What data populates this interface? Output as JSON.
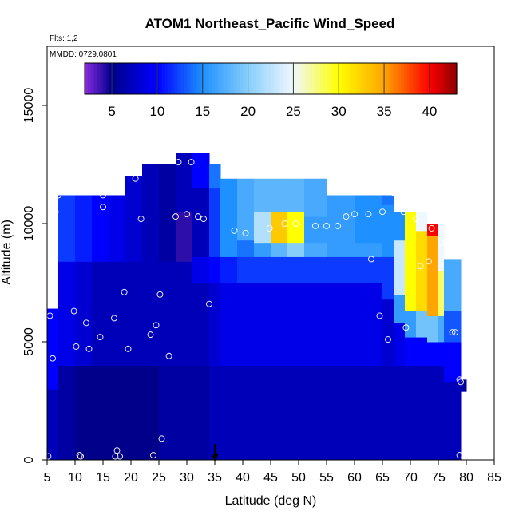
{
  "chart_data": {
    "type": "heatmap",
    "title": "ATOM1 Northeast_Pacific Wind_Speed",
    "subtitle_flights": "Flts: 1,2",
    "subtitle_dates": "MMDD: 0729,0801",
    "xlabel": "Latitude (deg N)",
    "ylabel": "Altitude (m)",
    "xlim": [
      5,
      85
    ],
    "ylim": [
      0,
      17500
    ],
    "x_ticks": [
      5,
      10,
      15,
      20,
      25,
      30,
      35,
      40,
      45,
      50,
      55,
      60,
      65,
      70,
      75,
      80,
      85
    ],
    "y_ticks": [
      0,
      5000,
      10000,
      15000
    ],
    "colorbar": {
      "min": 2,
      "max": 43,
      "ticks": [
        5,
        10,
        15,
        20,
        25,
        30,
        35,
        40
      ],
      "colors": [
        "#8a2be2",
        "#00008b",
        "#0000ff",
        "#1e90ff",
        "#87cefa",
        "#f0f8ff",
        "#ffff00",
        "#ffa500",
        "#ff0000",
        "#8b0000"
      ],
      "color_stops": [
        2,
        5,
        10,
        15,
        20,
        25,
        30,
        35,
        40,
        43
      ]
    },
    "columns": [
      {
        "x0": 5,
        "x1": 7,
        "layers": [
          [
            0,
            3000,
            7
          ],
          [
            3000,
            6400,
            10
          ]
        ]
      },
      {
        "x0": 7,
        "x1": 10,
        "layers": [
          [
            0,
            4000,
            6
          ],
          [
            4000,
            8400,
            9
          ],
          [
            8400,
            11200,
            12
          ]
        ]
      },
      {
        "x0": 10,
        "x1": 13,
        "layers": [
          [
            0,
            4000,
            5
          ],
          [
            4000,
            8400,
            8
          ],
          [
            8400,
            11200,
            11
          ]
        ]
      },
      {
        "x0": 13,
        "x1": 16,
        "layers": [
          [
            0,
            4000,
            5
          ],
          [
            4000,
            8400,
            7
          ],
          [
            8400,
            11200,
            10
          ]
        ]
      },
      {
        "x0": 16,
        "x1": 19,
        "layers": [
          [
            0,
            4000,
            5
          ],
          [
            4000,
            8400,
            7
          ],
          [
            8400,
            11200,
            9
          ]
        ]
      },
      {
        "x0": 19,
        "x1": 22,
        "layers": [
          [
            0,
            4000,
            5
          ],
          [
            4000,
            8400,
            7
          ],
          [
            8400,
            12000,
            8
          ]
        ]
      },
      {
        "x0": 22,
        "x1": 25,
        "layers": [
          [
            0,
            4000,
            5
          ],
          [
            4000,
            8400,
            7
          ],
          [
            8400,
            12500,
            7
          ]
        ]
      },
      {
        "x0": 25,
        "x1": 28,
        "layers": [
          [
            0,
            4000,
            6
          ],
          [
            4000,
            8400,
            7
          ],
          [
            8400,
            12500,
            6
          ]
        ]
      },
      {
        "x0": 28,
        "x1": 31,
        "layers": [
          [
            0,
            4000,
            6
          ],
          [
            4000,
            8400,
            7
          ],
          [
            8400,
            10500,
            4
          ],
          [
            10500,
            13000,
            7
          ]
        ]
      },
      {
        "x0": 31,
        "x1": 34,
        "layers": [
          [
            0,
            4000,
            6
          ],
          [
            4000,
            7500,
            7
          ],
          [
            7500,
            8600,
            9
          ],
          [
            8600,
            11500,
            7
          ],
          [
            11500,
            13000,
            10
          ]
        ]
      },
      {
        "x0": 34,
        "x1": 36,
        "layers": [
          [
            0,
            4000,
            7
          ],
          [
            4000,
            7500,
            8
          ],
          [
            7500,
            8600,
            10
          ],
          [
            8600,
            11500,
            12
          ],
          [
            11500,
            12500,
            14
          ]
        ]
      },
      {
        "x0": 36,
        "x1": 39,
        "layers": [
          [
            0,
            4000,
            7
          ],
          [
            4000,
            7500,
            9
          ],
          [
            7500,
            8600,
            11
          ],
          [
            8600,
            11900,
            15
          ]
        ]
      },
      {
        "x0": 39,
        "x1": 42,
        "layers": [
          [
            0,
            4000,
            7
          ],
          [
            4000,
            7500,
            9
          ],
          [
            7500,
            8600,
            12
          ],
          [
            8600,
            9300,
            14
          ],
          [
            9300,
            11900,
            17
          ]
        ]
      },
      {
        "x0": 42,
        "x1": 45,
        "layers": [
          [
            0,
            4000,
            7
          ],
          [
            4000,
            7500,
            9
          ],
          [
            7500,
            8600,
            12
          ],
          [
            8600,
            9200,
            16
          ],
          [
            9200,
            10500,
            22
          ],
          [
            10500,
            11900,
            18
          ]
        ]
      },
      {
        "x0": 45,
        "x1": 48,
        "layers": [
          [
            0,
            4000,
            7
          ],
          [
            4000,
            7500,
            9
          ],
          [
            7500,
            8600,
            12
          ],
          [
            8600,
            9200,
            18
          ],
          [
            9200,
            10500,
            33
          ],
          [
            10500,
            11900,
            18
          ]
        ]
      },
      {
        "x0": 48,
        "x1": 51,
        "layers": [
          [
            0,
            4000,
            7
          ],
          [
            4000,
            7500,
            9
          ],
          [
            7500,
            8600,
            12
          ],
          [
            8600,
            9200,
            20
          ],
          [
            9200,
            10500,
            30
          ],
          [
            10500,
            11900,
            18
          ]
        ]
      },
      {
        "x0": 51,
        "x1": 55,
        "layers": [
          [
            0,
            4000,
            7
          ],
          [
            4000,
            7500,
            9
          ],
          [
            7500,
            8600,
            12
          ],
          [
            8600,
            9200,
            17
          ],
          [
            9200,
            10300,
            16
          ],
          [
            10300,
            11900,
            17
          ]
        ]
      },
      {
        "x0": 55,
        "x1": 60,
        "layers": [
          [
            0,
            4000,
            7
          ],
          [
            4000,
            7500,
            9
          ],
          [
            7500,
            8600,
            12
          ],
          [
            8600,
            9200,
            16
          ],
          [
            9200,
            10500,
            16
          ],
          [
            10500,
            11200,
            16
          ]
        ]
      },
      {
        "x0": 60,
        "x1": 65,
        "layers": [
          [
            0,
            4000,
            7
          ],
          [
            4000,
            7500,
            9
          ],
          [
            7500,
            8600,
            12
          ],
          [
            8600,
            9200,
            16
          ],
          [
            9200,
            10500,
            15
          ],
          [
            10500,
            11200,
            15
          ]
        ]
      },
      {
        "x0": 65,
        "x1": 67,
        "layers": [
          [
            0,
            4000,
            7
          ],
          [
            4000,
            6800,
            8
          ],
          [
            6800,
            8600,
            12
          ],
          [
            8600,
            10800,
            15
          ],
          [
            10800,
            11200,
            14
          ]
        ]
      },
      {
        "x0": 67,
        "x1": 69,
        "layers": [
          [
            0,
            4000,
            7
          ],
          [
            4000,
            5800,
            9
          ],
          [
            5800,
            7000,
            16
          ],
          [
            7000,
            9300,
            23
          ],
          [
            9300,
            10500,
            15
          ]
        ]
      },
      {
        "x0": 69,
        "x1": 71,
        "layers": [
          [
            0,
            4000,
            7
          ],
          [
            4000,
            5200,
            10
          ],
          [
            5200,
            6300,
            16
          ],
          [
            6300,
            10500,
            30
          ]
        ]
      },
      {
        "x0": 71,
        "x1": 73,
        "layers": [
          [
            0,
            4000,
            7
          ],
          [
            4000,
            5200,
            10
          ],
          [
            5200,
            6300,
            19
          ],
          [
            6300,
            9700,
            32
          ],
          [
            9700,
            10500,
            25
          ]
        ]
      },
      {
        "x0": 73,
        "x1": 75,
        "layers": [
          [
            0,
            4000,
            7
          ],
          [
            4000,
            5000,
            10
          ],
          [
            5000,
            6100,
            19
          ],
          [
            6100,
            9500,
            35
          ],
          [
            9500,
            10000,
            40
          ]
        ]
      },
      {
        "x0": 75,
        "x1": 76,
        "layers": [
          [
            0,
            4000,
            7
          ],
          [
            4000,
            5000,
            10
          ],
          [
            5000,
            6100,
            17
          ],
          [
            6100,
            8000,
            28
          ],
          [
            8000,
            10000,
            25
          ]
        ]
      },
      {
        "x0": 76,
        "x1": 79,
        "layers": [
          [
            0,
            3300,
            7
          ],
          [
            3300,
            5000,
            10
          ],
          [
            5000,
            6300,
            13
          ],
          [
            6300,
            8500,
            17
          ]
        ]
      },
      {
        "x0": 79,
        "x1": 80,
        "layers": [
          [
            2900,
            3400,
            6
          ]
        ]
      }
    ],
    "points": [
      [
        5.2,
        150
      ],
      [
        5.5,
        6100
      ],
      [
        6,
        4300
      ],
      [
        6.5,
        10500
      ],
      [
        7,
        11200
      ],
      [
        9.8,
        6300
      ],
      [
        10.2,
        4800
      ],
      [
        10.8,
        200
      ],
      [
        11,
        150
      ],
      [
        12,
        5800
      ],
      [
        12.5,
        4700
      ],
      [
        15,
        10700
      ],
      [
        15,
        11200
      ],
      [
        14.5,
        5200
      ],
      [
        17,
        6000
      ],
      [
        17.2,
        150
      ],
      [
        17.5,
        400
      ],
      [
        18,
        150
      ],
      [
        18.8,
        7100
      ],
      [
        19.5,
        4700
      ],
      [
        20.8,
        11900
      ],
      [
        21.8,
        10200
      ],
      [
        23.5,
        5300
      ],
      [
        24,
        200
      ],
      [
        24.5,
        5700
      ],
      [
        25.2,
        7000
      ],
      [
        25.5,
        900
      ],
      [
        26.8,
        4400
      ],
      [
        28,
        10300
      ],
      [
        28.5,
        12600
      ],
      [
        30,
        10400
      ],
      [
        30.8,
        12600
      ],
      [
        32,
        10300
      ],
      [
        33,
        10200
      ],
      [
        34,
        6600
      ],
      [
        38.5,
        9700
      ],
      [
        40.5,
        9600
      ],
      [
        44.8,
        9800
      ],
      [
        47.5,
        10000
      ],
      [
        49.5,
        10000
      ],
      [
        53,
        9900
      ],
      [
        55,
        9900
      ],
      [
        57,
        9900
      ],
      [
        58.5,
        10300
      ],
      [
        60,
        10400
      ],
      [
        62.5,
        10400
      ],
      [
        63,
        8500
      ],
      [
        64.5,
        6100
      ],
      [
        65,
        10500
      ],
      [
        66,
        5100
      ],
      [
        67,
        11300
      ],
      [
        68.8,
        10500
      ],
      [
        69.2,
        5600
      ],
      [
        71,
        10200
      ],
      [
        71.8,
        8200
      ],
      [
        73.3,
        8400
      ],
      [
        73.8,
        9800
      ],
      [
        75.5,
        9200
      ],
      [
        76,
        9800
      ],
      [
        77.5,
        5400
      ],
      [
        78,
        5400
      ],
      [
        78.8,
        3400
      ],
      [
        79,
        3300
      ],
      [
        78.8,
        200
      ]
    ],
    "arrow_x": 35
  }
}
